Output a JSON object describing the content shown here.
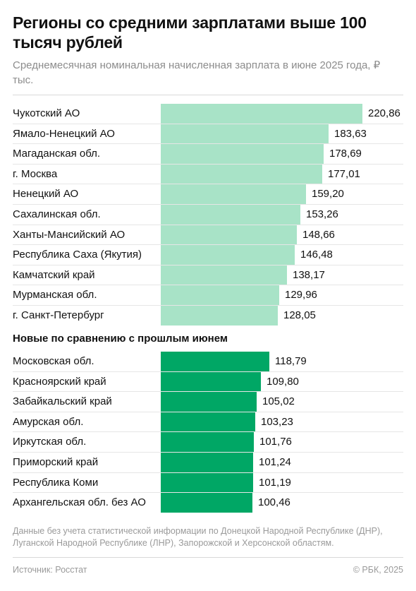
{
  "header": {
    "title": "Регионы со средними зарплатами выше 100 тысяч рублей",
    "subtitle": "Среднемесячная номинальная начисленная зарплата в июне 2025 года, ₽ тыс."
  },
  "section_label": "Новые по сравнению с прошлым июнем",
  "note": "Данные без учета статистической информации по Донецкой Народной Республике (ДНР), Луганской Народной Республике (ЛНР), Запорожской и Херсонской областям.",
  "footer": {
    "source": "Источник: Росстат",
    "copyright": "© РБК, 2025"
  },
  "colors": {
    "bar_light": "#a8e3c7",
    "bar_dark": "#00a765"
  },
  "chart_data": {
    "type": "bar",
    "orientation": "horizontal",
    "xlim": [
      0,
      220.86
    ],
    "groups": [
      {
        "name": "",
        "color": "#a8e3c7",
        "categories": [
          "Чукотский АО",
          "Ямало-Ненецкий АО",
          "Магаданская обл.",
          "г. Москва",
          "Ненецкий АО",
          "Сахалинская обл.",
          "Ханты-Мансийский АО",
          "Республика Саха (Якутия)",
          "Камчатский край",
          "Мурманская обл.",
          "г. Санкт-Петербург"
        ],
        "values": [
          220.86,
          183.63,
          178.69,
          177.01,
          159.2,
          153.26,
          148.66,
          146.48,
          138.17,
          129.96,
          128.05
        ],
        "value_labels": [
          "220,86",
          "183,63",
          "178,69",
          "177,01",
          "159,20",
          "153,26",
          "148,66",
          "146,48",
          "138,17",
          "129,96",
          "128,05"
        ]
      },
      {
        "name": "Новые по сравнению с прошлым июнем",
        "color": "#00a765",
        "categories": [
          "Московская обл.",
          "Красноярский край",
          "Забайкальский край",
          "Амурская обл.",
          "Иркутская обл.",
          "Приморский край",
          "Республика Коми",
          "Архангельская обл. без АО"
        ],
        "values": [
          118.79,
          109.8,
          105.02,
          103.23,
          101.76,
          101.24,
          101.19,
          100.46
        ],
        "value_labels": [
          "118,79",
          "109,80",
          "105,02",
          "103,23",
          "101,76",
          "101,24",
          "101,19",
          "100,46"
        ]
      }
    ]
  }
}
